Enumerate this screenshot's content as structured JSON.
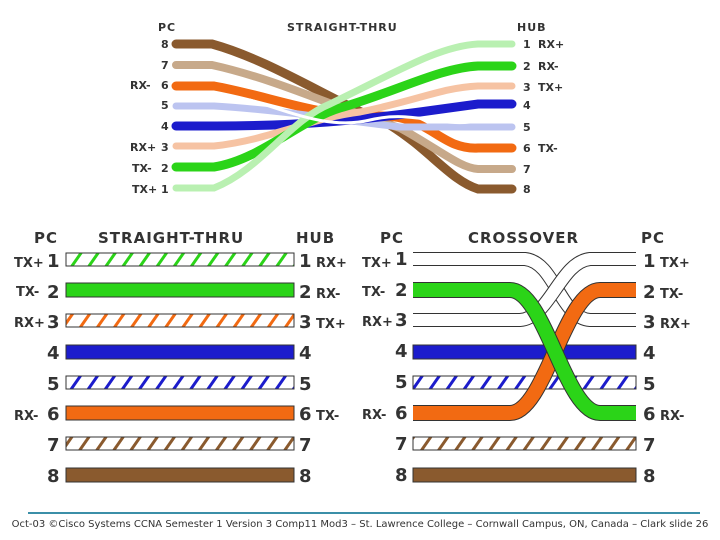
{
  "colors": {
    "orange": "#f26a12",
    "green": "#2bd418",
    "blue": "#1c1ccc",
    "brown": "#8a5a2e",
    "text": "#333333",
    "rule": "#3b8fa8"
  },
  "top_panel": {
    "title": "STRAIGHT-THRU",
    "left_header": "PC",
    "right_header": "HUB",
    "left_pins": [
      {
        "pin": "8",
        "signal": ""
      },
      {
        "pin": "7",
        "signal": ""
      },
      {
        "pin": "6",
        "signal": "RX-"
      },
      {
        "pin": "5",
        "signal": ""
      },
      {
        "pin": "4",
        "signal": ""
      },
      {
        "pin": "3",
        "signal": "RX+"
      },
      {
        "pin": "2",
        "signal": "TX-"
      },
      {
        "pin": "1",
        "signal": "TX+"
      }
    ],
    "right_pins": [
      {
        "pin": "1",
        "signal": "RX+"
      },
      {
        "pin": "2",
        "signal": "RX-"
      },
      {
        "pin": "3",
        "signal": "TX+"
      },
      {
        "pin": "4",
        "signal": ""
      },
      {
        "pin": "5",
        "signal": ""
      },
      {
        "pin": "6",
        "signal": "TX-"
      },
      {
        "pin": "7",
        "signal": ""
      },
      {
        "pin": "8",
        "signal": ""
      }
    ]
  },
  "straight_panel": {
    "left_header": "PC",
    "title": "STRAIGHT-THRU",
    "right_header": "HUB",
    "rows": [
      {
        "pin": "1",
        "left_signal": "TX+",
        "right_signal": "RX+",
        "wire": "white-green"
      },
      {
        "pin": "2",
        "left_signal": "TX-",
        "right_signal": "RX-",
        "wire": "green"
      },
      {
        "pin": "3",
        "left_signal": "RX+",
        "right_signal": "TX+",
        "wire": "white-orange"
      },
      {
        "pin": "4",
        "left_signal": "",
        "right_signal": "",
        "wire": "blue"
      },
      {
        "pin": "5",
        "left_signal": "",
        "right_signal": "",
        "wire": "white-blue"
      },
      {
        "pin": "6",
        "left_signal": "RX-",
        "right_signal": "TX-",
        "wire": "orange"
      },
      {
        "pin": "7",
        "left_signal": "",
        "right_signal": "",
        "wire": "white-brown"
      },
      {
        "pin": "8",
        "left_signal": "",
        "right_signal": "",
        "wire": "brown"
      }
    ]
  },
  "crossover_panel": {
    "left_header": "PC",
    "title": "CROSSOVER",
    "right_header": "PC",
    "rows": [
      {
        "left_pin": "1",
        "left_signal": "TX+",
        "right_pin": "1",
        "right_signal": "TX+"
      },
      {
        "left_pin": "2",
        "left_signal": "TX-",
        "right_pin": "2",
        "right_signal": "TX-"
      },
      {
        "left_pin": "3",
        "left_signal": "RX+",
        "right_pin": "3",
        "right_signal": "RX+"
      },
      {
        "left_pin": "4",
        "left_signal": "",
        "right_pin": "4",
        "right_signal": ""
      },
      {
        "left_pin": "5",
        "left_signal": "",
        "right_pin": "5",
        "right_signal": ""
      },
      {
        "left_pin": "6",
        "left_signal": "RX-",
        "right_pin": "6",
        "right_signal": "RX-"
      },
      {
        "left_pin": "7",
        "left_signal": "",
        "right_pin": "7",
        "right_signal": ""
      },
      {
        "left_pin": "8",
        "left_signal": "",
        "right_pin": "8",
        "right_signal": ""
      }
    ]
  },
  "footer": "Oct-03 ©Cisco Systems CCNA Semester 1 Version 3 Comp11 Mod3 – St. Lawrence College – Cornwall Campus, ON, Canada – Clark slide 26"
}
